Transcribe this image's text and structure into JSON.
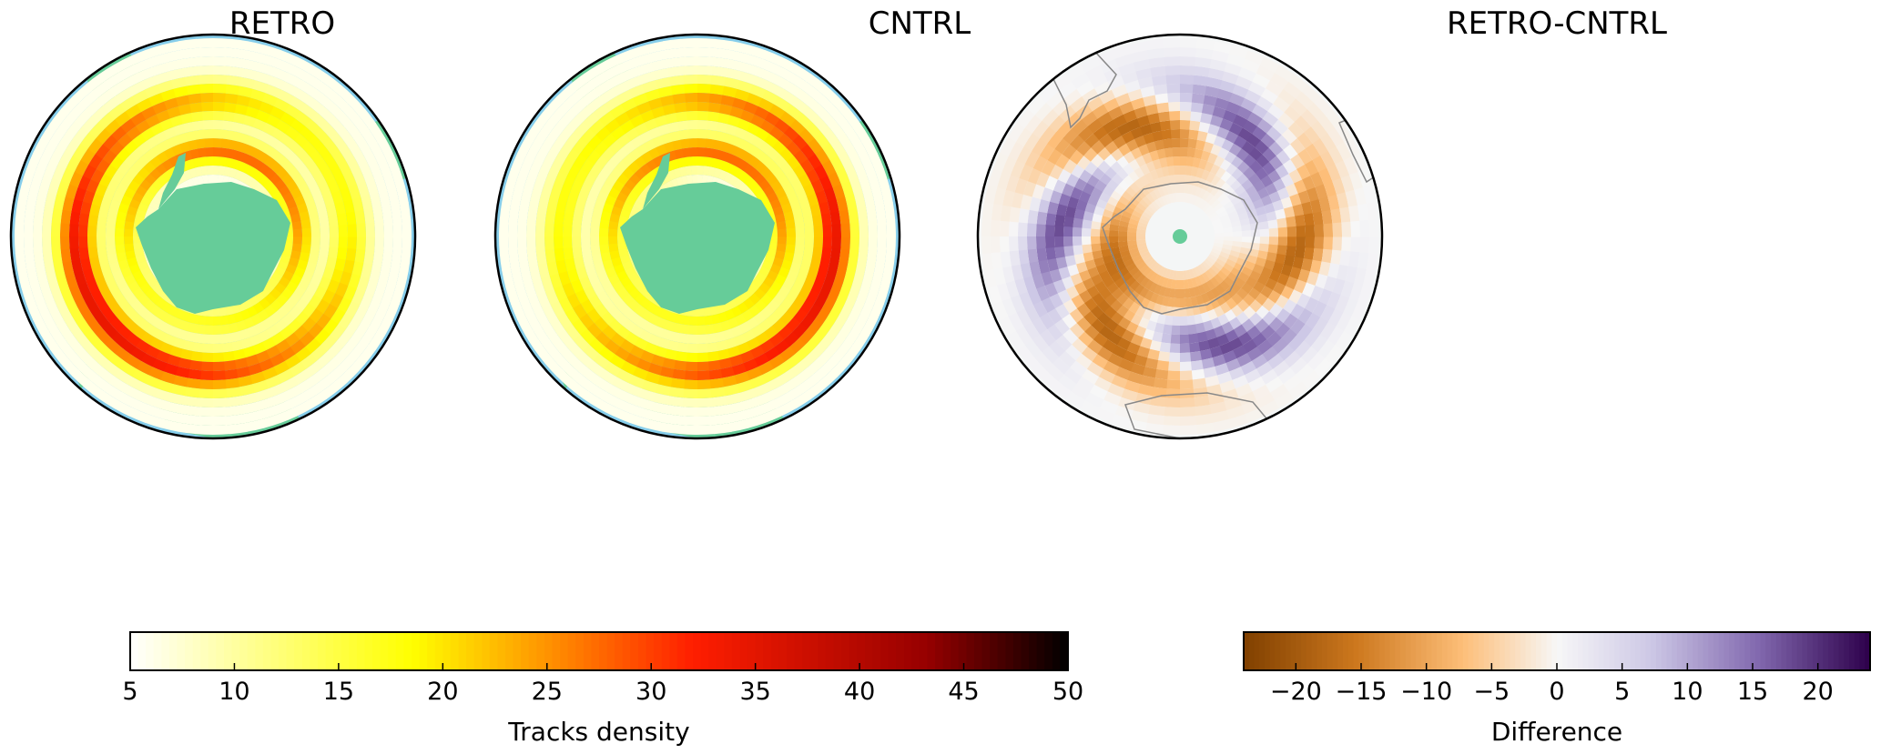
{
  "chart_data": [
    {
      "type": "heatmap",
      "projection": "south-polar stereographic",
      "title": "RETRO",
      "field": "Tracks density",
      "colormap": "hot_r",
      "value_range": [
        5,
        50
      ],
      "land_color": "#66cc99",
      "ocean_color": "#87ceeb"
    },
    {
      "type": "heatmap",
      "projection": "south-polar stereographic",
      "title": "CNTRL",
      "field": "Tracks density",
      "colormap": "hot_r",
      "value_range": [
        5,
        50
      ],
      "land_color": "#66cc99",
      "ocean_color": "#87ceeb"
    },
    {
      "type": "heatmap",
      "projection": "south-polar stereographic",
      "title": "RETRO-CNTRL",
      "field": "Difference",
      "colormap": "PuOr",
      "value_range": [
        -24,
        24
      ],
      "land_color": "#66cc99"
    }
  ],
  "colorbars": [
    {
      "label": "Tracks density",
      "ticks": [
        "5",
        "10",
        "15",
        "20",
        "25",
        "30",
        "35",
        "40",
        "45",
        "50"
      ],
      "tick_values": [
        5,
        10,
        15,
        20,
        25,
        30,
        35,
        40,
        45,
        50
      ],
      "range": [
        5,
        50
      ]
    },
    {
      "label": "Difference",
      "ticks": [
        "−20",
        "−15",
        "−10",
        "−5",
        "0",
        "5",
        "10",
        "15",
        "20"
      ],
      "tick_values": [
        -20,
        -15,
        -10,
        -5,
        0,
        5,
        10,
        15,
        20
      ],
      "range": [
        -24,
        24
      ]
    }
  ]
}
